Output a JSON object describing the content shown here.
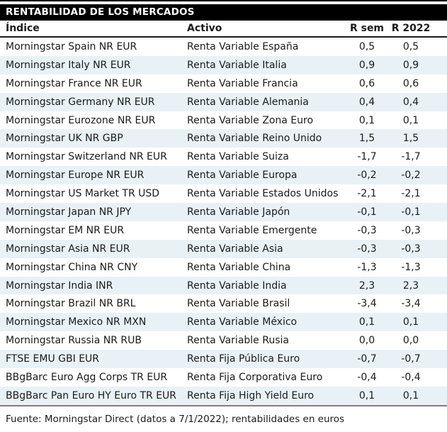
{
  "chart_data": {
    "type": "table",
    "title": "RENTABILIDAD DE LOS MERCADOS",
    "columns": [
      "Índice",
      "Activo",
      "R sem",
      "R 2022"
    ],
    "rows": [
      [
        "Morningstar Spain NR EUR",
        "Renta Variable España",
        "0,5",
        "0,5"
      ],
      [
        "Morningstar Italy NR EUR",
        "Renta Variable Italia",
        "0,9",
        "0,9"
      ],
      [
        "Morningstar France NR EUR",
        "Renta Variable Francia",
        "0,6",
        "0,6"
      ],
      [
        "Morningstar Germany NR EUR",
        "Renta Variable Alemania",
        "0,4",
        "0,4"
      ],
      [
        "Morningstar Eurozone NR EUR",
        "Renta Variable Zona Euro",
        "0,1",
        "0,1"
      ],
      [
        "Morningstar UK NR GBP",
        "Renta Variable Reino Unido",
        "1,5",
        "1,5"
      ],
      [
        "Morningstar Switzerland NR EUR",
        "Renta Variable Suiza",
        "-1,7",
        "-1,7"
      ],
      [
        "Morningstar Europe NR EUR",
        "Renta Variable Europa",
        "-0,2",
        "-0,2"
      ],
      [
        "Morningstar US Market TR USD",
        "Renta Variable Estados Unidos",
        "-2,1",
        "-2,1"
      ],
      [
        "Morningstar Japan NR JPY",
        "Renta Variable Japón",
        "-0,1",
        "-0,1"
      ],
      [
        "Morningstar EM NR EUR",
        "Renta Variable Emergente",
        "-0,3",
        "-0,3"
      ],
      [
        "Morningstar Asia NR EUR",
        "Renta Variable Asia",
        "-0,3",
        "-0,3"
      ],
      [
        "Morningstar China NR CNY",
        "Renta Variable China",
        "-1,3",
        "-1,3"
      ],
      [
        "Morningstar India INR",
        "Renta Variable India",
        "2,3",
        "2,3"
      ],
      [
        "Morningstar Brazil NR BRL",
        "Renta Variable Brasil",
        "-3,4",
        "-3,4"
      ],
      [
        "Morningstar Mexico NR MXN",
        "Renta Variable México",
        "0,1",
        "0,1"
      ],
      [
        "Morningstar Russia NR RUB",
        "Renta Variable Rusia",
        "0,0",
        "0,0"
      ],
      [
        "FTSE EMU GBI EUR",
        "Renta Fija Pública Euro",
        "-0,7",
        "-0,7"
      ],
      [
        "BBgBarc Euro Agg Corps TR EUR",
        "Renta Fija Corporativa Euro",
        "-0,4",
        "-0,4"
      ],
      [
        "BBgBarc Pan Euro HY Euro TR EUR",
        "Renta Fija High Yield Euro",
        "0,1",
        "0,1"
      ]
    ],
    "source": "Fuente: Morningstar Direct (datos a 7/1/2022); rentabilidades en euros",
    "layout_hints": {
      "alternating_rows": true,
      "first_alt_row_index": 1,
      "numeric_columns_alignment": "center"
    }
  },
  "colors": {
    "title_bg": "#000000",
    "title_text": "#ffffff",
    "alt_row_bg": "#e8f2f6",
    "body_text": "#1a1a1a",
    "header_underline": "#1a1a1a",
    "bottom_rule": "#7f7f7f"
  }
}
